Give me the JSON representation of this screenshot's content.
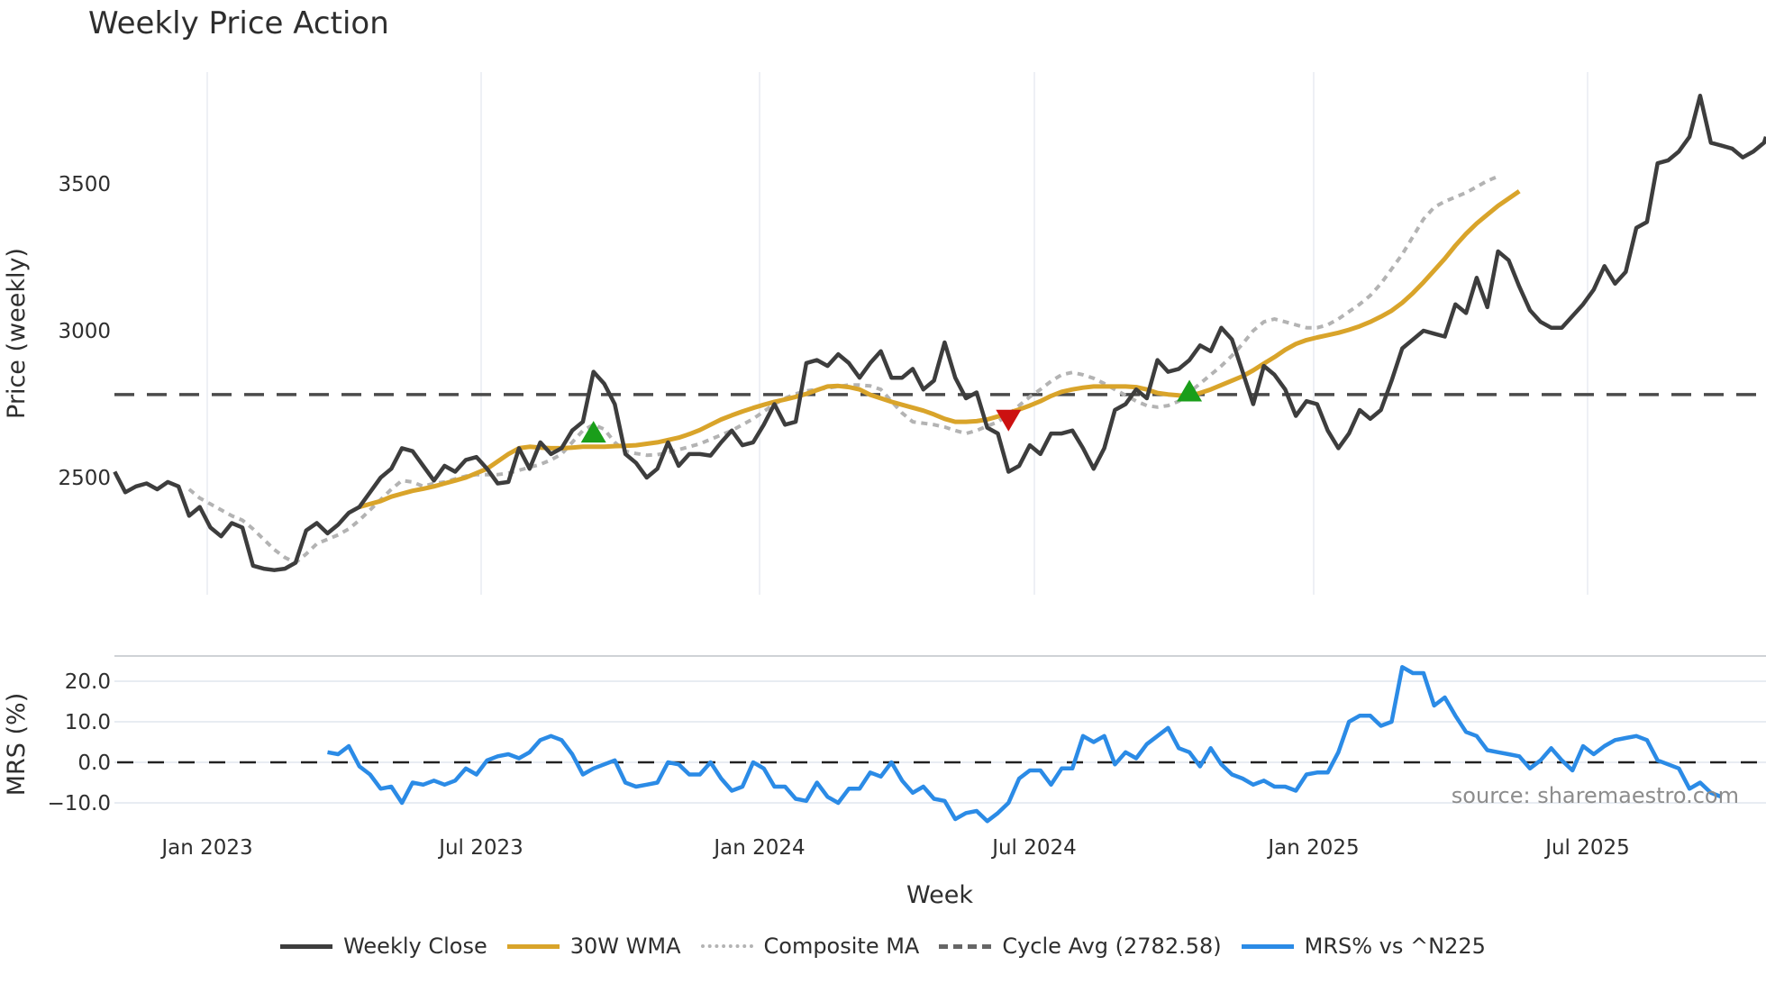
{
  "title": "Weekly Price Action",
  "source": "source: sharemaestro.com",
  "colors": {
    "weekly_close": "#3d3d3d",
    "wma": "#d9a42a",
    "composite_ma": "#b3b3b3",
    "cycle_avg": "#4a4a4a",
    "mrs": "#2b8be6",
    "buy_marker": "#1a9e1a",
    "sell_marker": "#cc1111",
    "grid": "#e8ecf2"
  },
  "legend": [
    {
      "key": "weekly_close",
      "label": "Weekly Close",
      "style": "solid"
    },
    {
      "key": "wma",
      "label": "30W WMA",
      "style": "solid"
    },
    {
      "key": "composite_ma",
      "label": "Composite MA",
      "style": "dotted"
    },
    {
      "key": "cycle_avg",
      "label": "Cycle Avg (2782.58)",
      "style": "dashed"
    },
    {
      "key": "mrs",
      "label": "MRS% vs ^N225",
      "style": "solid"
    }
  ],
  "chart_data": [
    {
      "type": "line",
      "title": "Weekly Price Action",
      "xlabel": "Week",
      "ylabel": "Price (weekly)",
      "ylim": [
        2090,
        3880
      ],
      "yticks": [
        2500,
        3000,
        3500
      ],
      "xticks": [
        "Jan 2023",
        "Jul 2023",
        "Jan 2024",
        "Jul 2024",
        "Jan 2025",
        "Jul 2025"
      ],
      "grid": true,
      "cycle_avg": 2782.58,
      "start_week_offset": -8.7,
      "series": [
        {
          "name": "Weekly Close",
          "values": [
            2520,
            2450,
            2470,
            2480,
            2460,
            2485,
            2470,
            2370,
            2400,
            2330,
            2300,
            2345,
            2330,
            2200,
            2190,
            2185,
            2190,
            2210,
            2320,
            2345,
            2310,
            2340,
            2380,
            2400,
            2450,
            2500,
            2530,
            2600,
            2590,
            2540,
            2490,
            2540,
            2520,
            2560,
            2570,
            2530,
            2480,
            2485,
            2600,
            2530,
            2620,
            2580,
            2600,
            2660,
            2690,
            2860,
            2820,
            2750,
            2580,
            2550,
            2500,
            2530,
            2620,
            2540,
            2580,
            2580,
            2575,
            2620,
            2660,
            2610,
            2620,
            2680,
            2750,
            2680,
            2690,
            2890,
            2900,
            2880,
            2920,
            2890,
            2840,
            2890,
            2930,
            2840,
            2840,
            2870,
            2800,
            2830,
            2960,
            2840,
            2770,
            2790,
            2670,
            2650,
            2520,
            2540,
            2610,
            2580,
            2650,
            2650,
            2660,
            2600,
            2530,
            2600,
            2730,
            2750,
            2800,
            2770,
            2900,
            2860,
            2870,
            2900,
            2950,
            2930,
            3010,
            2970,
            2860,
            2750,
            2880,
            2850,
            2800,
            2710,
            2760,
            2750,
            2660,
            2600,
            2650,
            2730,
            2700,
            2730,
            2830,
            2940,
            2970,
            3000,
            2990,
            2980,
            3090,
            3060,
            3180,
            3080,
            3270,
            3240,
            3150,
            3070,
            3030,
            3010,
            3010,
            3050,
            3090,
            3140,
            3220,
            3160,
            3200,
            3350,
            3370,
            3570,
            3580,
            3610,
            3660,
            3800,
            3640,
            3630,
            3620,
            3590,
            3610,
            3640,
            3660
          ]
        },
        {
          "name": "30W WMA",
          "start_index": 23,
          "values": [
            2400,
            2410,
            2420,
            2435,
            2445,
            2455,
            2462,
            2470,
            2480,
            2490,
            2500,
            2515,
            2530,
            2555,
            2580,
            2600,
            2605,
            2602,
            2600,
            2600,
            2602,
            2605,
            2605,
            2605,
            2607,
            2608,
            2610,
            2615,
            2620,
            2628,
            2636,
            2648,
            2662,
            2680,
            2698,
            2712,
            2725,
            2737,
            2748,
            2758,
            2766,
            2775,
            2785,
            2798,
            2810,
            2812,
            2808,
            2800,
            2782,
            2770,
            2758,
            2748,
            2738,
            2728,
            2715,
            2700,
            2690,
            2690,
            2692,
            2698,
            2708,
            2720,
            2732,
            2745,
            2760,
            2778,
            2792,
            2800,
            2806,
            2810,
            2810,
            2810,
            2810,
            2808,
            2800,
            2788,
            2783,
            2780,
            2778,
            2788,
            2800,
            2815,
            2830,
            2845,
            2865,
            2888,
            2910,
            2935,
            2955,
            2968,
            2977,
            2985,
            2993,
            3003,
            3015,
            3030,
            3048,
            3068,
            3095,
            3128,
            3165,
            3205,
            3245,
            3290,
            3330,
            3365,
            3395,
            3425,
            3450,
            3475
          ]
        },
        {
          "name": "Composite MA",
          "start_index": 7,
          "values": [
            2460,
            2430,
            2410,
            2390,
            2370,
            2355,
            2325,
            2290,
            2255,
            2228,
            2210,
            2240,
            2275,
            2290,
            2305,
            2325,
            2355,
            2390,
            2425,
            2460,
            2490,
            2485,
            2470,
            2480,
            2485,
            2495,
            2505,
            2510,
            2510,
            2510,
            2515,
            2525,
            2535,
            2545,
            2560,
            2580,
            2620,
            2660,
            2680,
            2665,
            2620,
            2590,
            2582,
            2576,
            2578,
            2585,
            2595,
            2605,
            2615,
            2630,
            2645,
            2660,
            2680,
            2700,
            2725,
            2750,
            2770,
            2785,
            2795,
            2800,
            2805,
            2810,
            2815,
            2815,
            2812,
            2800,
            2760,
            2720,
            2690,
            2685,
            2680,
            2672,
            2660,
            2650,
            2660,
            2675,
            2690,
            2715,
            2745,
            2775,
            2800,
            2828,
            2850,
            2858,
            2850,
            2838,
            2820,
            2800,
            2780,
            2760,
            2745,
            2740,
            2745,
            2760,
            2790,
            2820,
            2850,
            2880,
            2915,
            2955,
            3000,
            3030,
            3040,
            3030,
            3020,
            3010,
            3010,
            3020,
            3040,
            3065,
            3090,
            3120,
            3160,
            3210,
            3260,
            3320,
            3380,
            3420,
            3440,
            3455,
            3470,
            3490,
            3510,
            3525
          ]
        },
        {
          "name": "Cycle Avg (2782.58)",
          "value": 2782.58
        }
      ],
      "markers": [
        {
          "type": "buy",
          "index": 45,
          "value": 2650
        },
        {
          "type": "sell",
          "index": 84,
          "value": 2700
        },
        {
          "type": "buy",
          "index": 101,
          "value": 2790
        }
      ]
    },
    {
      "type": "line",
      "xlabel": "Week",
      "ylabel": "MRS (%)",
      "ylim": [
        -12,
        26
      ],
      "yticks": [
        -10.0,
        0.0,
        10.0,
        20.0
      ],
      "ytick_labels": [
        "−10.0",
        "0.0",
        "10.0",
        "20.0"
      ],
      "zero_line": 0.0,
      "series": [
        {
          "name": "MRS% vs ^N225",
          "start_index": 20,
          "values": [
            2.5,
            2.0,
            4.0,
            -1.0,
            -3.0,
            -6.5,
            -6.0,
            -10.0,
            -5.0,
            -5.5,
            -4.5,
            -5.5,
            -4.5,
            -1.5,
            -3.0,
            0.5,
            1.5,
            2.0,
            1.0,
            2.5,
            5.5,
            6.5,
            5.5,
            2.0,
            -3.0,
            -1.5,
            -0.5,
            0.5,
            -5.0,
            -6.0,
            -5.5,
            -5.0,
            0.0,
            -0.5,
            -3.0,
            -3.0,
            0.0,
            -4.0,
            -7.0,
            -6.0,
            0.0,
            -1.5,
            -6.0,
            -6.0,
            -9.0,
            -9.5,
            -5.0,
            -8.5,
            -10.0,
            -6.5,
            -6.5,
            -2.5,
            -3.5,
            0.0,
            -4.5,
            -7.5,
            -6.0,
            -9.0,
            -9.5,
            -14.0,
            -12.5,
            -12.0,
            -14.5,
            -12.5,
            -10.0,
            -4.0,
            -2.0,
            -2.0,
            -5.5,
            -1.5,
            -1.5,
            6.5,
            5.0,
            6.5,
            -0.5,
            2.5,
            1.0,
            4.5,
            6.5,
            8.5,
            3.5,
            2.5,
            -1.0,
            3.5,
            -0.5,
            -3.0,
            -4.0,
            -5.5,
            -4.5,
            -6.0,
            -6.0,
            -7.0,
            -3.0,
            -2.5,
            -2.5,
            2.5,
            10.0,
            11.5,
            11.5,
            9.0,
            10.0,
            23.5,
            22.0,
            22.0,
            14.0,
            16.0,
            11.5,
            7.5,
            6.5,
            3.0,
            2.5,
            2.0,
            1.5,
            -1.5,
            0.5,
            3.5,
            0.5,
            -2.0,
            4.0,
            2.0,
            4.0,
            5.5,
            6.0,
            6.5,
            5.5,
            0.5,
            -0.5,
            -1.5,
            -6.5,
            -5.0,
            -7.5,
            -8.5
          ]
        }
      ]
    }
  ]
}
